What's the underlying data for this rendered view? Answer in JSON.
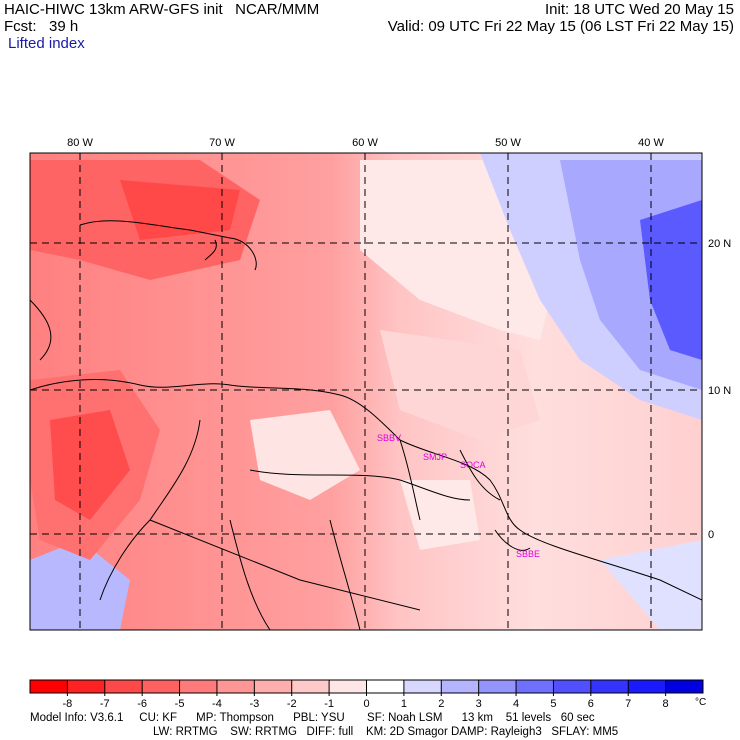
{
  "header": {
    "title": "HAIC-HIWC 13km ARW-GFS init   NCAR/MMM",
    "forecast": "Fcst:   39 h",
    "field": "Lifted index",
    "init": "Init: 18 UTC Wed 20 May 15",
    "valid": "Valid: 09 UTC Fri 22 May 15 (06 LST Fri 22 May 15)"
  },
  "map": {
    "lon_labels": [
      "80 W",
      "70 W",
      "60 W",
      "50 W",
      "40 W"
    ],
    "lat_labels": [
      "20 N",
      "10 N",
      "0"
    ],
    "stations": [
      "SBBV",
      "SMJP",
      "SOCA",
      "SBBE"
    ]
  },
  "colorbar": {
    "tick_labels": [
      "-8",
      "-7",
      "-6",
      "-5",
      "-4",
      "-3",
      "-2",
      "-1",
      "0",
      "1",
      "2",
      "3",
      "4",
      "5",
      "6",
      "7",
      "8"
    ],
    "unit": "°C",
    "colors": [
      "#ff0000",
      "#ff2222",
      "#ff4848",
      "#ff6060",
      "#ff7b7b",
      "#ff9696",
      "#ffaeae",
      "#ffc9c9",
      "#ffe6e6",
      "#ffffff",
      "#d8d8ff",
      "#b4b4ff",
      "#9494ff",
      "#7070ff",
      "#5050ff",
      "#3434ff",
      "#1a1aff",
      "#0000e0"
    ]
  },
  "footer": {
    "line1": "Model Info: V3.6.1     CU: KF      MP: Thompson      PBL: YSU       SF: Noah LSM      13 km    51 levels   60 sec",
    "line2": "LW: RRTMG    SW: RRTMG   DIFF: full    KM: 2D Smagor DAMP: Rayleigh3   SFLAY: MM5"
  }
}
